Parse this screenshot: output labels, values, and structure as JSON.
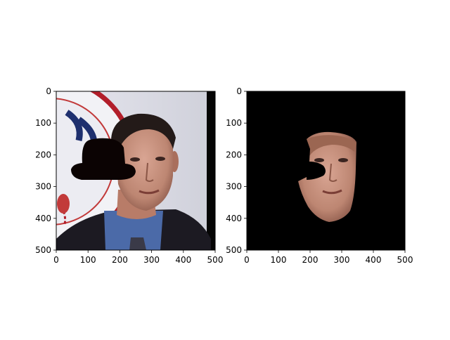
{
  "panels": [
    {
      "id": "left",
      "subject": "photo-with-hat-mask",
      "x_ticks": [
        "0",
        "100",
        "200",
        "300",
        "400",
        "500"
      ],
      "y_ticks": [
        "0",
        "100",
        "200",
        "300",
        "400",
        "500"
      ]
    },
    {
      "id": "right",
      "subject": "segmented-face-on-black",
      "x_ticks": [
        "0",
        "100",
        "200",
        "300",
        "400",
        "500"
      ],
      "y_ticks": [
        "0",
        "100",
        "200",
        "300",
        "400",
        "500"
      ]
    }
  ],
  "colors": {
    "mask": "#0b0303",
    "skin": "#c08a78",
    "suit": "#1c1a22",
    "shirt": "#4b6aa8",
    "background_wall": "#dcdce4",
    "right_background": "#000000"
  }
}
